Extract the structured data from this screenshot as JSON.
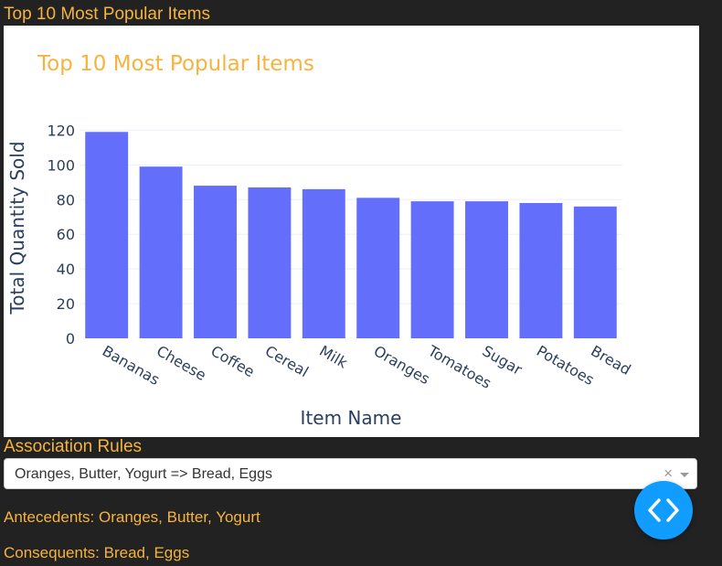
{
  "sections": {
    "popular_title": "Top 10 Most Popular Items",
    "rules_title": "Association Rules"
  },
  "dropdown": {
    "value": "Oranges, Butter, Yogurt => Bread, Eggs",
    "clear_glyph": "×"
  },
  "rule_details": {
    "antecedents_label": "Antecedents:",
    "antecedents_value": "Oranges, Butter, Yogurt",
    "consequents_label": "Consequents:",
    "consequents_value": "Bread, Eggs"
  },
  "fab": {
    "icon": "code-brackets-icon"
  },
  "colors": {
    "background": "#222222",
    "accent": "#f6b33e",
    "bar": "#636efa",
    "axis_text": "#2a3f5f",
    "fab": "#119dff"
  },
  "chart_data": {
    "type": "bar",
    "title": "Top 10 Most Popular Items",
    "xlabel": "Item Name",
    "ylabel": "Total Quantity Sold",
    "categories": [
      "Bananas",
      "Cheese",
      "Coffee",
      "Cereal",
      "Milk",
      "Oranges",
      "Tomatoes",
      "Sugar",
      "Potatoes",
      "Bread"
    ],
    "values": [
      119,
      99,
      88,
      87,
      86,
      81,
      79,
      79,
      78,
      76
    ],
    "ylim": [
      0,
      126
    ],
    "yticks": [
      0,
      20,
      40,
      60,
      80,
      100,
      120
    ],
    "grid": true,
    "legend": "none"
  }
}
